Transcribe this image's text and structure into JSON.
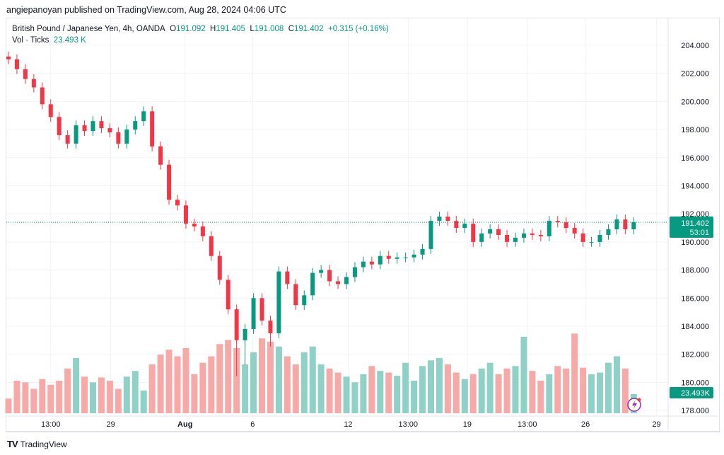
{
  "published": "angiepanoyan published on TradingView.com, Aug 28, 2024 04:06 UTC",
  "legend": {
    "symbol": "British Pound / Japanese Yen, 4h, OANDA",
    "o_label": "O",
    "o": "191.092",
    "h_label": "H",
    "h": "191.405",
    "l_label": "L",
    "l": "191.008",
    "c_label": "C",
    "c": "191.402",
    "change": "+0.315 (+0.16%)",
    "vol_label": "Vol · Ticks",
    "vol": "23.493 K"
  },
  "price_badge": {
    "price": "191.402",
    "countdown": "53:01"
  },
  "vol_badge": "23.493K",
  "footer": {
    "brand": "TradingView"
  },
  "colors": {
    "up": "#089981",
    "down": "#f23645",
    "vol_up": "#8fd1c7",
    "vol_down": "#f7a9a7",
    "badge": "#089981"
  },
  "chart_data": {
    "type": "candlestick",
    "title": "British Pound / Japanese Yen, 4h, OANDA",
    "ylim": [
      178,
      204
    ],
    "y_ticks": [
      "204.000",
      "202.000",
      "200.000",
      "198.000",
      "196.000",
      "194.000",
      "192.000",
      "190.000",
      "188.000",
      "186.000",
      "184.000",
      "182.000",
      "180.000",
      "178.000"
    ],
    "x_ticks": [
      {
        "label": "13:00",
        "i": 5
      },
      {
        "label": "29",
        "i": 12.1
      },
      {
        "label": "Aug",
        "i": 20.9
      },
      {
        "label": "6",
        "i": 28.9
      },
      {
        "label": "12",
        "i": 40.2
      },
      {
        "label": "13:00",
        "i": 47.3
      },
      {
        "label": "19",
        "i": 54.3
      },
      {
        "label": "13:00",
        "i": 61.4
      },
      {
        "label": "26",
        "i": 68.3
      },
      {
        "label": "29",
        "i": 76.7
      }
    ],
    "first_open": 203.2,
    "closes": [
      203.0,
      202.3,
      201.6,
      201.0,
      199.8,
      198.9,
      197.6,
      197.0,
      198.3,
      197.9,
      198.6,
      198.1,
      197.8,
      197.0,
      198.0,
      198.6,
      199.3,
      196.8,
      195.5,
      193.0,
      192.6,
      191.3,
      191.1,
      190.4,
      189.0,
      187.3,
      185.2,
      183.0,
      183.8,
      186.0,
      184.4,
      183.5,
      187.9,
      187.0,
      185.5,
      186.2,
      187.8,
      188.0,
      187.2,
      187.0,
      187.5,
      188.2,
      188.6,
      188.4,
      189.0,
      188.8,
      188.9,
      188.9,
      189.1,
      189.5,
      191.5,
      191.8,
      191.5,
      191.0,
      191.3,
      190.0,
      190.6,
      190.9,
      190.5,
      190.0,
      190.3,
      190.6,
      190.5,
      190.4,
      191.5,
      191.4,
      191.0,
      190.6,
      190.0,
      190.0,
      190.5,
      190.9,
      191.6,
      190.9,
      191.402
    ],
    "volume_k": [
      18,
      40,
      38,
      30,
      42,
      35,
      40,
      55,
      68,
      45,
      38,
      44,
      40,
      30,
      45,
      52,
      28,
      60,
      72,
      78,
      70,
      80,
      48,
      62,
      70,
      85,
      90,
      80,
      60,
      75,
      92,
      88,
      82,
      70,
      60,
      75,
      82,
      60,
      55,
      50,
      45,
      38,
      48,
      58,
      52,
      50,
      46,
      62,
      40,
      58,
      65,
      68,
      60,
      50,
      42,
      48,
      55,
      62,
      48,
      55,
      58,
      94,
      52,
      40,
      48,
      58,
      55,
      98,
      56,
      48,
      50,
      62,
      70,
      55,
      23.493
    ]
  }
}
